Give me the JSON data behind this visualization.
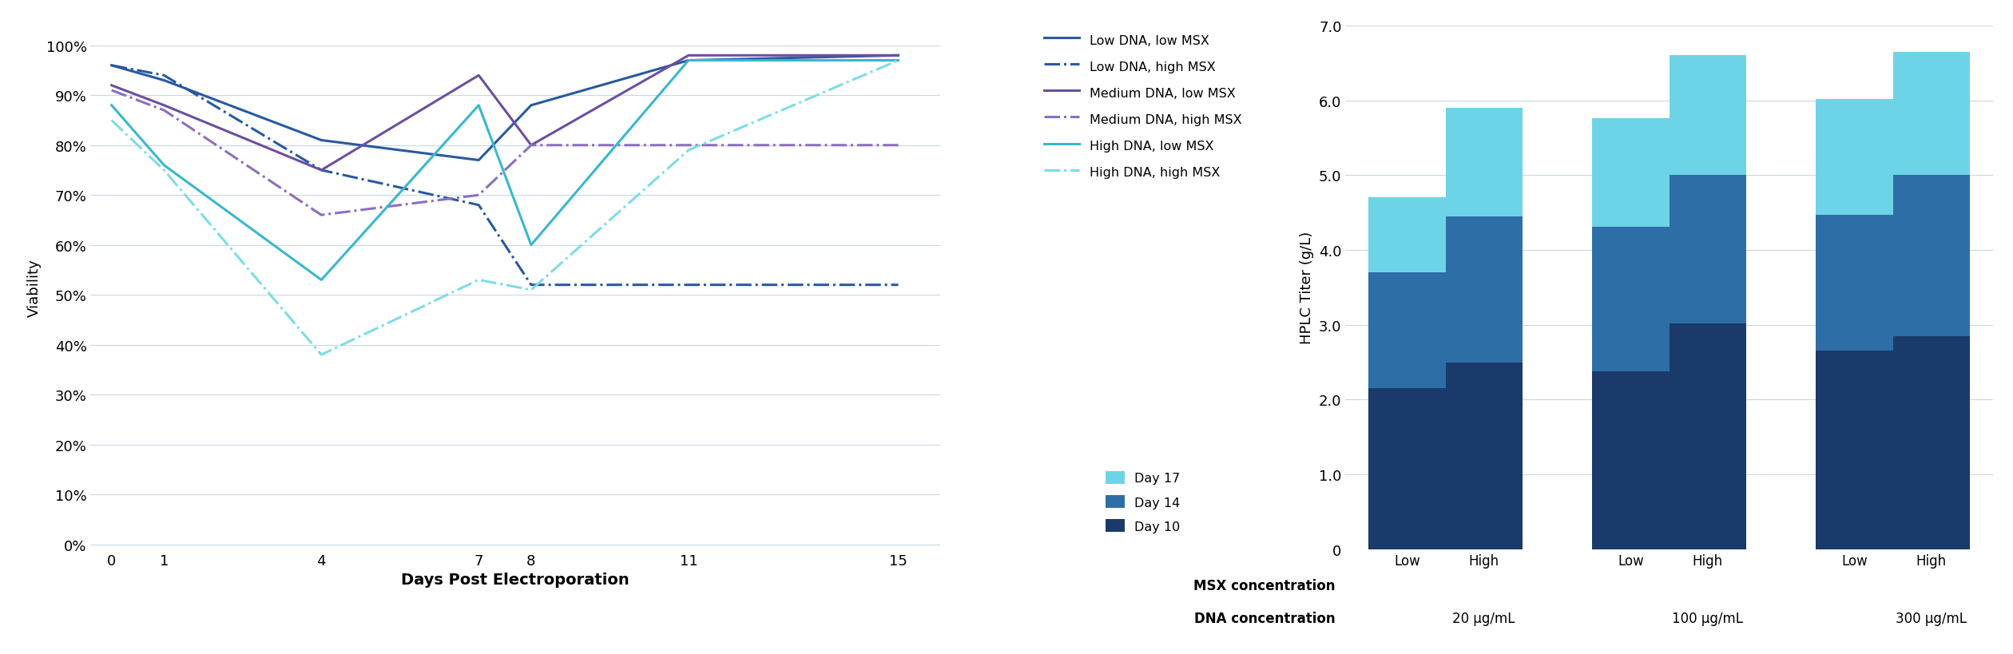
{
  "line_days": [
    0,
    1,
    4,
    7,
    8,
    11,
    15
  ],
  "lines": [
    {
      "label": "Low DNA, low MSX",
      "color": "#2959a0",
      "style": "solid",
      "linewidth": 2.2,
      "values": [
        0.96,
        0.93,
        0.81,
        0.77,
        0.88,
        0.97,
        0.98
      ]
    },
    {
      "label": "Low DNA, high MSX",
      "color": "#2959a0",
      "style": "dashdot",
      "linewidth": 2.2,
      "values": [
        0.96,
        0.94,
        0.75,
        0.68,
        0.52,
        0.52,
        0.52
      ]
    },
    {
      "label": "Medium DNA, low MSX",
      "color": "#6b4fa0",
      "style": "solid",
      "linewidth": 2.2,
      "values": [
        0.92,
        0.88,
        0.75,
        0.94,
        0.8,
        0.98,
        0.98
      ]
    },
    {
      "label": "Medium DNA, high MSX",
      "color": "#8b6fc0",
      "style": "dashdot",
      "linewidth": 2.2,
      "values": [
        0.91,
        0.87,
        0.66,
        0.7,
        0.8,
        0.8,
        0.8
      ]
    },
    {
      "label": "High DNA, low MSX",
      "color": "#38b8cc",
      "style": "solid",
      "linewidth": 2.2,
      "values": [
        0.88,
        0.76,
        0.53,
        0.88,
        0.6,
        0.97,
        0.97
      ]
    },
    {
      "label": "High DNA, high MSX",
      "color": "#7ddce8",
      "style": "dashdot",
      "linewidth": 2.2,
      "values": [
        0.85,
        0.75,
        0.38,
        0.53,
        0.51,
        0.79,
        0.97
      ]
    }
  ],
  "line_ylabel": "Viability",
  "line_xlabel": "Days Post Electroporation",
  "line_yticks": [
    0.0,
    0.1,
    0.2,
    0.3,
    0.4,
    0.5,
    0.6,
    0.7,
    0.8,
    0.9,
    1.0
  ],
  "line_ylim": [
    -0.01,
    1.04
  ],
  "bar_categories": [
    "Low",
    "High",
    "Low",
    "High",
    "Low",
    "High"
  ],
  "bar_day10": [
    2.15,
    2.5,
    2.38,
    3.02,
    2.65,
    2.85
  ],
  "bar_day14": [
    1.55,
    1.95,
    1.93,
    1.98,
    1.82,
    2.15
  ],
  "bar_day17": [
    1.0,
    1.45,
    1.45,
    1.6,
    1.55,
    1.65
  ],
  "bar_color_day10": "#1a3a6b",
  "bar_color_day14": "#2e6ea6",
  "bar_color_day17": "#6dd4e8",
  "bar_ylabel": "HPLC Titer (g/L)",
  "bar_ylim": [
    0,
    7.0
  ],
  "bar_yticks": [
    0,
    1.0,
    2.0,
    3.0,
    4.0,
    5.0,
    6.0,
    7.0
  ],
  "bar_legend_labels": [
    "Day 17",
    "Day 14",
    "Day 10"
  ],
  "bar_msx_label": "MSX concentration",
  "bar_dna_label": "DNA concentration",
  "bar_dna_groups": [
    "20 μg/mL",
    "100 μg/mL",
    "300 μg/mL"
  ],
  "background_color": "#ffffff",
  "grid_color": "#c8d8e8"
}
